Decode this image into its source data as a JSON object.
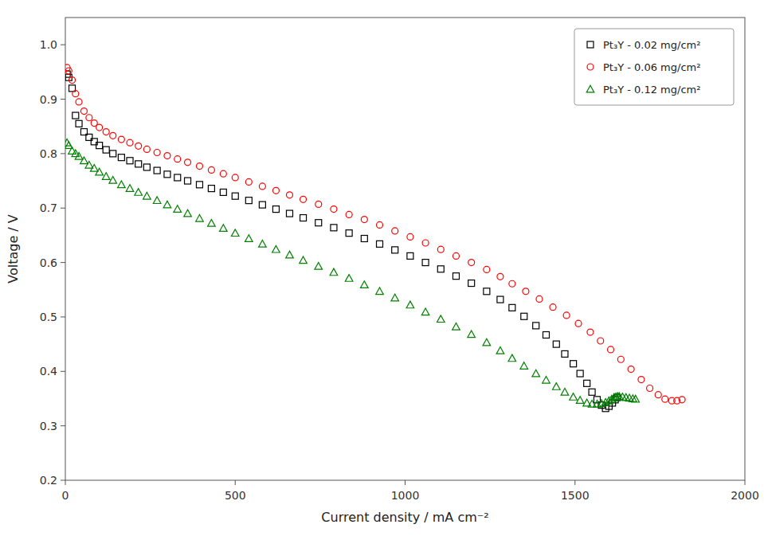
{
  "chart_data": {
    "type": "scatter",
    "x_label": "Current density / mA cm⁻²",
    "y_label": "Voltage / V",
    "xlim": [
      0,
      2000
    ],
    "ylim": [
      0.2,
      1.05
    ],
    "xticks": [
      0,
      500,
      1000,
      1500,
      2000
    ],
    "yticks": [
      0.2,
      0.3,
      0.4,
      0.5,
      0.6,
      0.7,
      0.8,
      0.9,
      {
        "value": 1.0,
        "label": "1.0"
      }
    ],
    "grid": false,
    "legend": "upper right",
    "series": [
      {
        "name": "Pt₃Y - 0.02 mg/cm²",
        "color": "black",
        "marker": "square",
        "x": [
          5,
          10,
          20,
          30,
          40,
          55,
          70,
          85,
          100,
          120,
          140,
          165,
          190,
          215,
          240,
          270,
          300,
          330,
          360,
          395,
          430,
          465,
          500,
          540,
          580,
          620,
          660,
          700,
          745,
          790,
          835,
          880,
          925,
          970,
          1015,
          1060,
          1105,
          1150,
          1195,
          1240,
          1280,
          1315,
          1350,
          1385,
          1415,
          1445,
          1470,
          1495,
          1515,
          1535,
          1550,
          1565,
          1578,
          1590,
          1600,
          1610,
          1618,
          1624
        ],
        "values": [
          0.946,
          0.94,
          0.92,
          0.87,
          0.855,
          0.84,
          0.83,
          0.822,
          0.815,
          0.807,
          0.8,
          0.793,
          0.787,
          0.781,
          0.775,
          0.769,
          0.762,
          0.756,
          0.75,
          0.743,
          0.736,
          0.729,
          0.722,
          0.714,
          0.706,
          0.698,
          0.69,
          0.682,
          0.673,
          0.664,
          0.654,
          0.644,
          0.634,
          0.623,
          0.612,
          0.6,
          0.588,
          0.575,
          0.562,
          0.547,
          0.532,
          0.517,
          0.501,
          0.484,
          0.467,
          0.45,
          0.432,
          0.414,
          0.396,
          0.378,
          0.362,
          0.348,
          0.338,
          0.332,
          0.336,
          0.342,
          0.348,
          0.352
        ]
      },
      {
        "name": "Pt₃Y - 0.06 mg/cm²",
        "color": "red",
        "marker": "circle",
        "x": [
          5,
          10,
          20,
          30,
          40,
          55,
          70,
          85,
          100,
          120,
          140,
          165,
          190,
          215,
          240,
          270,
          300,
          330,
          360,
          395,
          430,
          465,
          500,
          540,
          580,
          620,
          660,
          700,
          745,
          790,
          835,
          880,
          925,
          970,
          1015,
          1060,
          1105,
          1150,
          1195,
          1240,
          1280,
          1315,
          1355,
          1395,
          1435,
          1475,
          1510,
          1545,
          1575,
          1605,
          1635,
          1665,
          1695,
          1720,
          1745,
          1765,
          1785,
          1800,
          1815
        ],
        "values": [
          0.958,
          0.952,
          0.935,
          0.91,
          0.895,
          0.878,
          0.866,
          0.856,
          0.848,
          0.84,
          0.833,
          0.826,
          0.82,
          0.814,
          0.808,
          0.802,
          0.796,
          0.79,
          0.784,
          0.777,
          0.77,
          0.763,
          0.756,
          0.748,
          0.74,
          0.732,
          0.724,
          0.716,
          0.707,
          0.698,
          0.688,
          0.679,
          0.669,
          0.658,
          0.647,
          0.636,
          0.624,
          0.612,
          0.6,
          0.587,
          0.574,
          0.561,
          0.547,
          0.533,
          0.518,
          0.503,
          0.488,
          0.472,
          0.456,
          0.44,
          0.422,
          0.404,
          0.385,
          0.369,
          0.357,
          0.349,
          0.346,
          0.346,
          0.348
        ]
      },
      {
        "name": "Pt₃Y - 0.12 mg/cm²",
        "color": "green",
        "marker": "triangle",
        "x": [
          5,
          10,
          20,
          30,
          40,
          55,
          70,
          85,
          100,
          120,
          140,
          165,
          190,
          215,
          240,
          270,
          300,
          330,
          360,
          395,
          430,
          465,
          500,
          540,
          580,
          620,
          660,
          700,
          745,
          790,
          835,
          880,
          925,
          970,
          1015,
          1060,
          1105,
          1150,
          1195,
          1240,
          1280,
          1315,
          1350,
          1385,
          1415,
          1445,
          1470,
          1495,
          1515,
          1535,
          1550,
          1565,
          1578,
          1590,
          1600,
          1608,
          1615,
          1620,
          1625,
          1630,
          1640,
          1650,
          1660,
          1670,
          1678
        ],
        "values": [
          0.82,
          0.815,
          0.805,
          0.8,
          0.795,
          0.787,
          0.779,
          0.773,
          0.766,
          0.758,
          0.751,
          0.743,
          0.736,
          0.729,
          0.722,
          0.714,
          0.706,
          0.698,
          0.69,
          0.681,
          0.672,
          0.663,
          0.654,
          0.644,
          0.634,
          0.624,
          0.614,
          0.604,
          0.593,
          0.582,
          0.571,
          0.559,
          0.547,
          0.535,
          0.522,
          0.509,
          0.496,
          0.482,
          0.468,
          0.453,
          0.438,
          0.424,
          0.41,
          0.396,
          0.384,
          0.372,
          0.362,
          0.353,
          0.347,
          0.342,
          0.34,
          0.34,
          0.341,
          0.343,
          0.346,
          0.349,
          0.352,
          0.353,
          0.354,
          0.354,
          0.353,
          0.352,
          0.351,
          0.35,
          0.349
        ]
      }
    ]
  }
}
